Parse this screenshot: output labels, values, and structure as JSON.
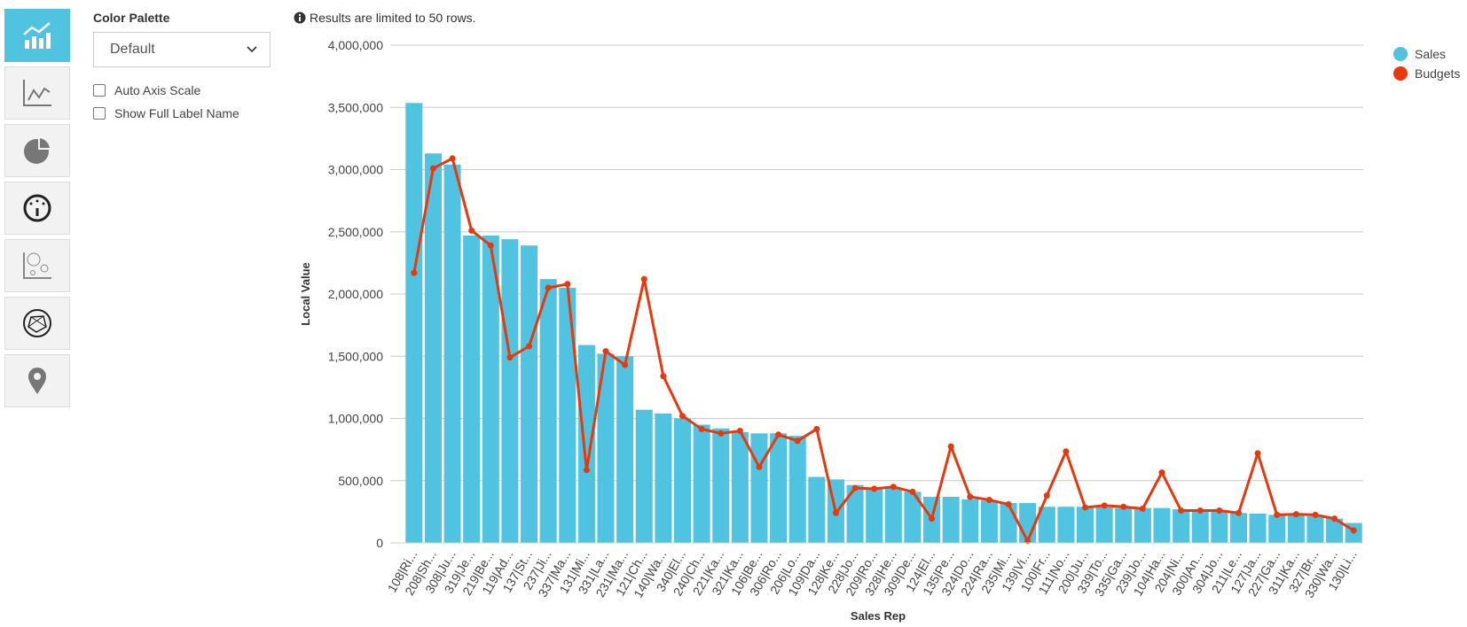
{
  "options": {
    "title": "Color Palette",
    "palette": "Default",
    "checkboxes": [
      "Auto Axis Scale",
      "Show Full Label Name"
    ]
  },
  "notice": "Results are limited to 50 rows.",
  "chart_data": {
    "type": "combo",
    "xlabel": "Sales Rep",
    "ylabel": "Local Value",
    "legend": "top-right",
    "grid": true,
    "categories": [
      "108|Ri...",
      "208|Sh...",
      "308|Ju...",
      "319|Je...",
      "219|Be...",
      "119|Ad...",
      "137|St...",
      "237|Ji...",
      "337|Ma...",
      "131|Mi...",
      "331|La...",
      "231|Ma...",
      "121|Ch...",
      "140|Wa...",
      "340|El...",
      "240|Ch...",
      "221|Ka...",
      "321|Ka...",
      "106|Be...",
      "306|Ro...",
      "206|Lo...",
      "109|Da...",
      "128|Ke...",
      "228|Jo...",
      "209|Ro...",
      "328|He...",
      "309|De...",
      "124|El...",
      "135|Pe...",
      "324|Do...",
      "224|Ra...",
      "235|Mi...",
      "139|Vi...",
      "100|Fr...",
      "111|No...",
      "200|Ju...",
      "339|To...",
      "335|Ga...",
      "239|Jo...",
      "104|Ha...",
      "204|Ni...",
      "300|An...",
      "304|Jo...",
      "211|Le...",
      "127|Ja...",
      "227|Ga...",
      "311|Ka...",
      "327|Br...",
      "330|Wa...",
      "130|Li..."
    ],
    "series": [
      {
        "name": "Sales",
        "type": "bar",
        "color": "#4fc3df",
        "values": [
          3535000,
          3130000,
          3040000,
          2470000,
          2470000,
          2440000,
          2390000,
          2120000,
          2050000,
          1590000,
          1520000,
          1500000,
          1070000,
          1040000,
          1000000,
          950000,
          920000,
          890000,
          880000,
          880000,
          860000,
          530000,
          510000,
          465000,
          440000,
          440000,
          410000,
          370000,
          370000,
          350000,
          340000,
          320000,
          320000,
          290000,
          290000,
          290000,
          285000,
          280000,
          280000,
          280000,
          270000,
          260000,
          255000,
          240000,
          235000,
          225000,
          220000,
          215000,
          195000,
          160000
        ]
      },
      {
        "name": "Budgets",
        "type": "line",
        "color": "#e8380d",
        "values": [
          2170000,
          3010000,
          3090000,
          2510000,
          2390000,
          1490000,
          1580000,
          2050000,
          2080000,
          585000,
          1540000,
          1430000,
          2120000,
          1340000,
          1020000,
          915000,
          880000,
          900000,
          610000,
          870000,
          820000,
          915000,
          240000,
          440000,
          435000,
          450000,
          410000,
          195000,
          775000,
          370000,
          345000,
          310000,
          15000,
          380000,
          735000,
          285000,
          300000,
          290000,
          275000,
          565000,
          260000,
          260000,
          260000,
          240000,
          720000,
          225000,
          230000,
          225000,
          195000,
          100000
        ]
      }
    ],
    "ylim": [
      0,
      4000000
    ],
    "yticks": [
      0,
      {
        "value": 500000,
        "label": "500,000"
      },
      {
        "value": 1000000,
        "label": "1,000,000"
      },
      {
        "value": 1500000,
        "label": "1,500,000"
      },
      {
        "value": 2000000,
        "label": "2,000,000"
      },
      {
        "value": 2500000,
        "label": "2,500,000"
      },
      {
        "value": 3000000,
        "label": "3,000,000"
      },
      {
        "value": 3500000,
        "label": "3,500,000"
      },
      {
        "value": 4000000,
        "label": "4,000,000"
      }
    ]
  }
}
